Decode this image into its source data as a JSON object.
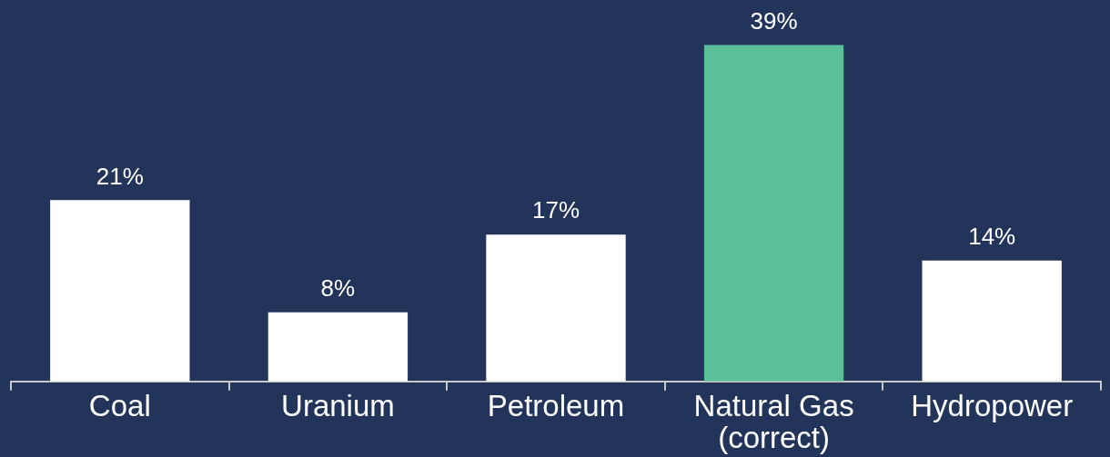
{
  "chart_data": {
    "type": "bar",
    "categories": [
      "Coal",
      "Uranium",
      "Petroleum",
      "Natural Gas (correct)",
      "Hydropower"
    ],
    "values": [
      21,
      8,
      17,
      39,
      14
    ],
    "value_labels": [
      "21%",
      "8%",
      "17%",
      "39%",
      "14%"
    ],
    "colors": [
      "#ffffff",
      "#ffffff",
      "#ffffff",
      "#5bbf9a",
      "#ffffff"
    ],
    "grid": false,
    "legend": false
  }
}
